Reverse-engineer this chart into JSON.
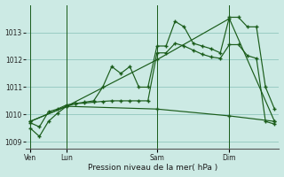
{
  "background_color": "#cceae4",
  "grid_color": "#99ccc4",
  "line_color": "#1a5c1a",
  "title": "Pression niveau de la mer( hPa )",
  "ylim": [
    1008.75,
    1014.0
  ],
  "yticks": [
    1009,
    1010,
    1011,
    1012,
    1013
  ],
  "xlim": [
    -0.5,
    27.5
  ],
  "day_labels": [
    "Ven",
    "Lun",
    "Sam",
    "Dim"
  ],
  "day_positions": [
    0,
    4,
    14,
    22
  ],
  "series1_x": [
    0,
    1,
    2,
    3,
    4,
    5,
    6,
    7,
    8,
    9,
    10,
    11,
    12,
    13,
    14,
    15,
    16,
    17,
    18,
    19,
    20,
    21,
    22,
    23,
    24,
    25,
    26,
    27
  ],
  "series1_y": [
    1009.5,
    1009.2,
    1009.75,
    1010.05,
    1010.3,
    1010.4,
    1010.45,
    1010.5,
    1011.0,
    1011.75,
    1011.5,
    1011.75,
    1011.0,
    1011.0,
    1012.5,
    1012.5,
    1013.4,
    1013.2,
    1012.6,
    1012.5,
    1012.4,
    1012.25,
    1013.55,
    1013.55,
    1013.2,
    1013.2,
    1011.0,
    1010.2
  ],
  "series2_x": [
    0,
    1,
    2,
    3,
    4,
    5,
    6,
    7,
    8,
    9,
    10,
    11,
    12,
    13,
    14,
    15,
    16,
    17,
    18,
    19,
    20,
    21,
    22,
    23,
    24,
    25,
    26,
    27
  ],
  "series2_y": [
    1009.7,
    1009.55,
    1010.1,
    1010.2,
    1010.35,
    1010.4,
    1010.42,
    1010.45,
    1010.48,
    1010.5,
    1010.5,
    1010.5,
    1010.5,
    1010.5,
    1012.25,
    1012.25,
    1012.6,
    1012.5,
    1012.35,
    1012.2,
    1012.1,
    1012.05,
    1012.55,
    1012.55,
    1012.15,
    1012.05,
    1009.75,
    1009.65
  ],
  "series3_x": [
    0,
    4,
    14,
    22,
    27
  ],
  "series3_y": [
    1009.75,
    1010.3,
    1012.0,
    1013.5,
    1009.75
  ],
  "series4_x": [
    0,
    4,
    14,
    22,
    27
  ],
  "series4_y": [
    1009.75,
    1010.3,
    1010.2,
    1009.95,
    1009.75
  ]
}
